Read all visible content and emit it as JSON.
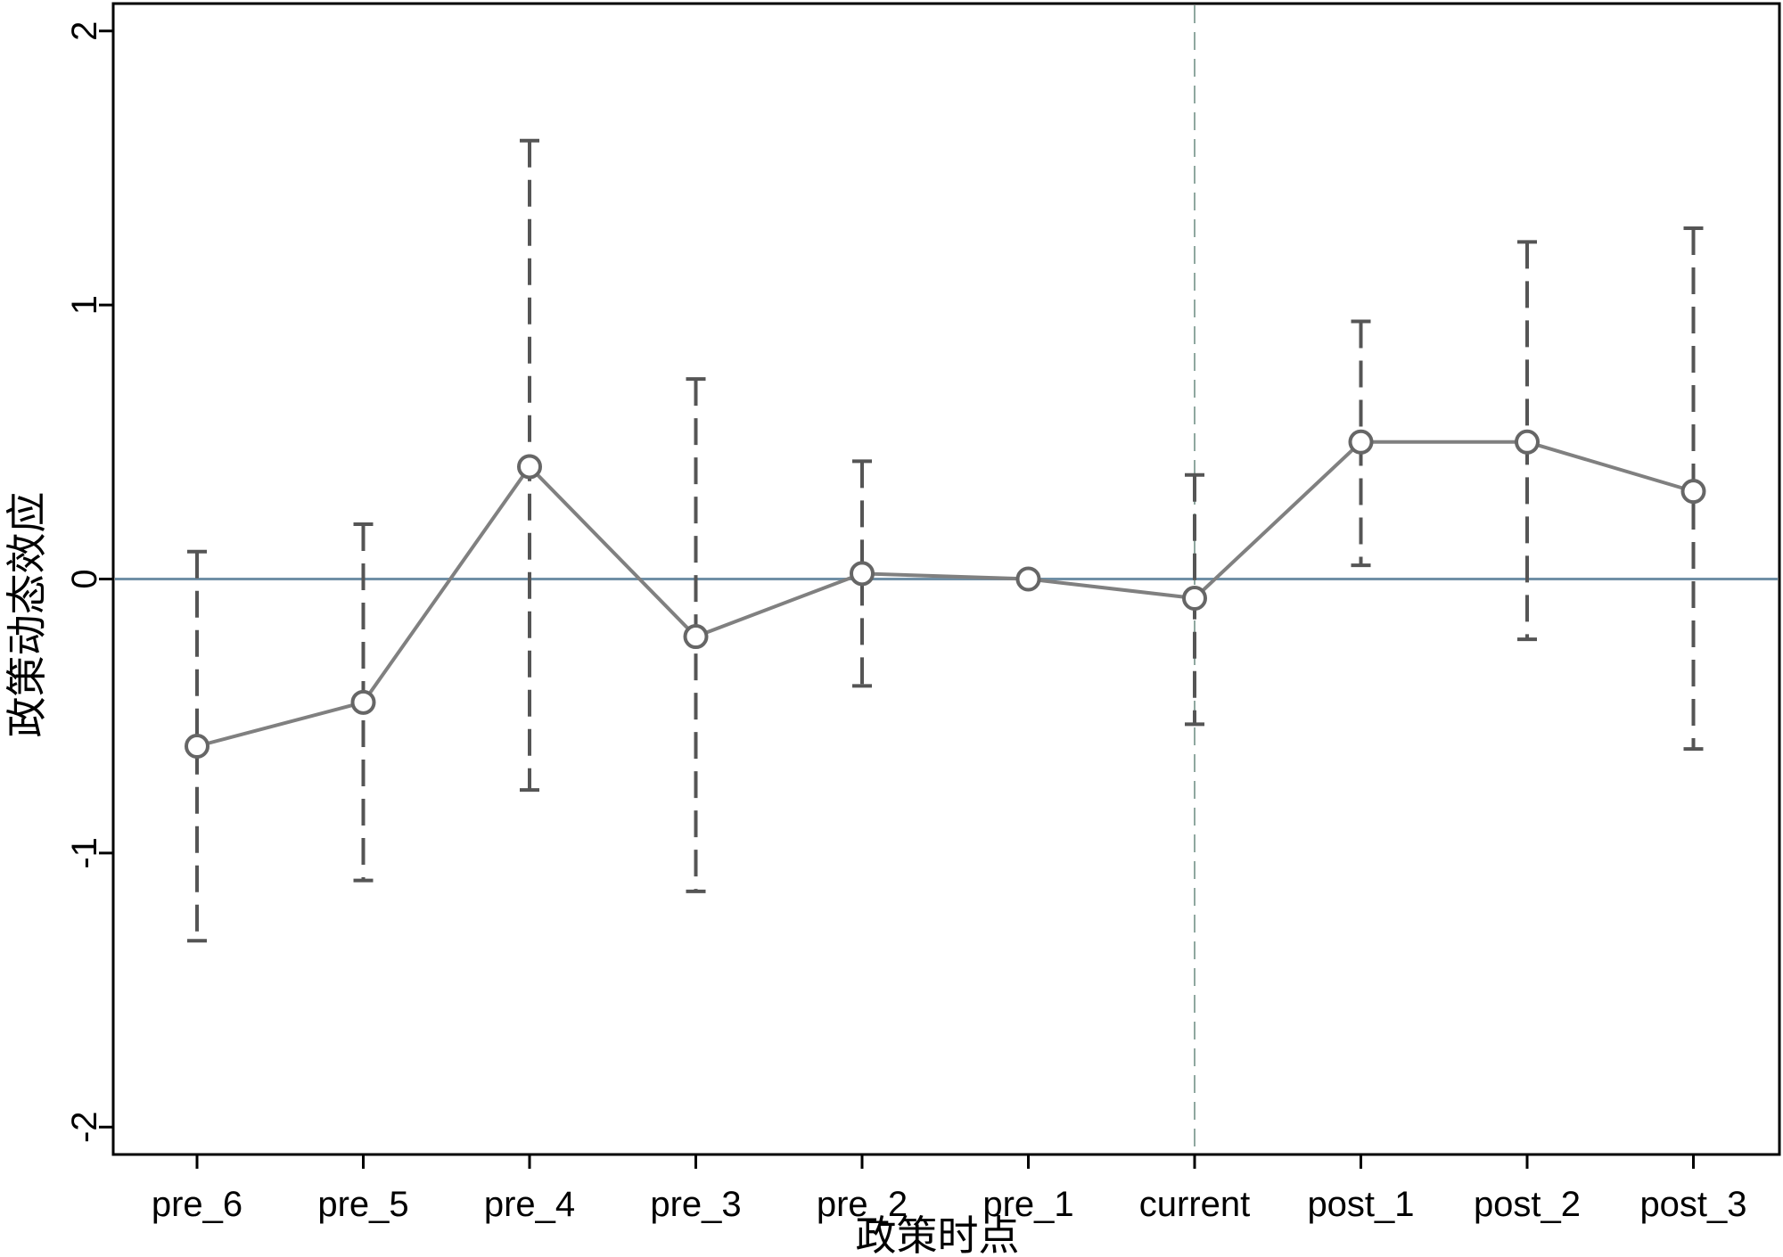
{
  "chart_data": {
    "type": "line",
    "title": "",
    "xlabel": "政策时点",
    "ylabel": "政策动态效应",
    "categories": [
      "pre_6",
      "pre_5",
      "pre_4",
      "pre_3",
      "pre_2",
      "pre_1",
      "current",
      "post_1",
      "post_2",
      "post_3"
    ],
    "series": [
      {
        "values": [
          -0.61,
          -0.45,
          0.41,
          -0.21,
          0.02,
          0.0,
          -0.07,
          0.5,
          0.5,
          0.32
        ],
        "ci_lower": [
          -1.32,
          -1.1,
          -0.77,
          -1.14,
          -0.39,
          null,
          -0.53,
          0.05,
          -0.22,
          -0.62
        ],
        "ci_upper": [
          0.1,
          0.2,
          1.6,
          0.73,
          0.43,
          null,
          0.38,
          0.94,
          1.23,
          1.28
        ]
      }
    ],
    "yticks": [
      "-2",
      "-1",
      "0",
      "1",
      "2"
    ],
    "ytick_values": [
      -2,
      -1,
      0,
      1,
      2
    ],
    "ylim": [
      -2.1,
      2.1
    ],
    "reference_line_y": 0,
    "reference_line_x": "current",
    "grid": false,
    "legend": "none",
    "colors": {
      "line": "#808080",
      "markers": "#666666",
      "error_bars": "#555555",
      "zero_line": "#6f8fa6",
      "vertical_line": "#8fa8a0",
      "frame": "#000000"
    }
  }
}
